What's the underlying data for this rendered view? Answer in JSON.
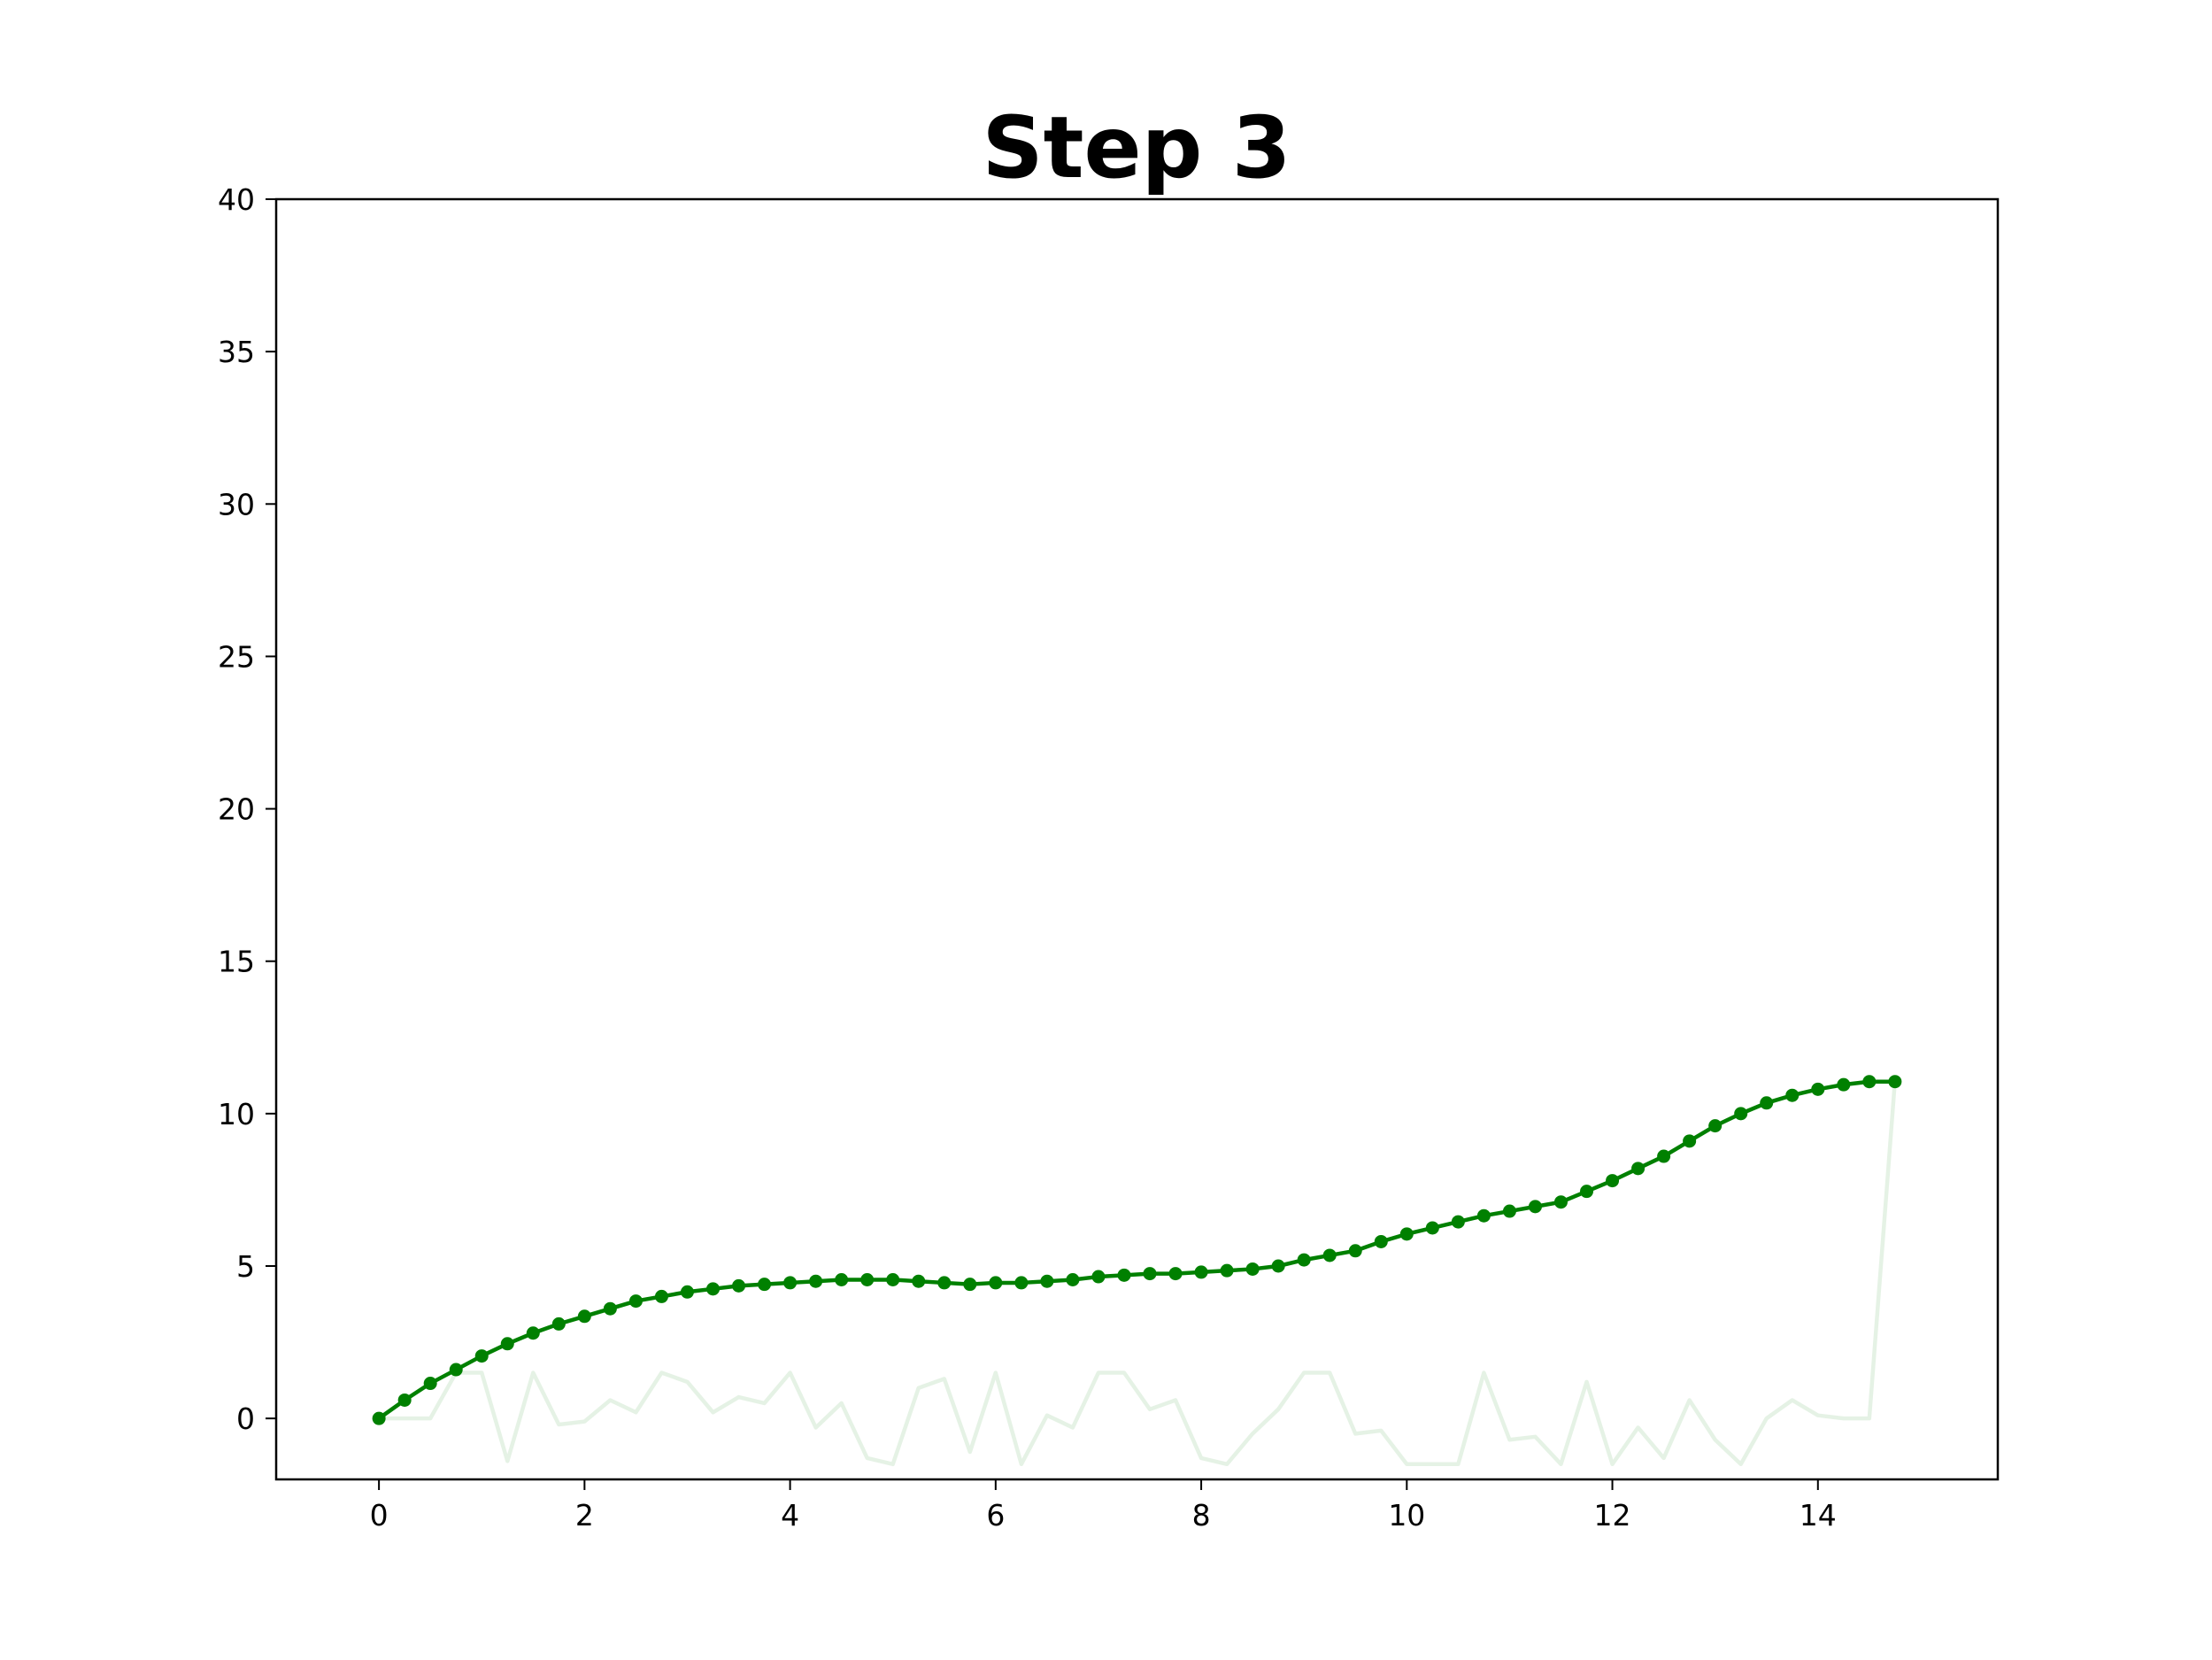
{
  "chart_data": {
    "type": "line",
    "title": "Step 3",
    "xlabel": "",
    "ylabel": "",
    "xlim": [
      -1,
      15.75
    ],
    "ylim": [
      -2,
      40
    ],
    "x_ticks": [
      0,
      2,
      4,
      6,
      8,
      10,
      12,
      14
    ],
    "y_ticks": [
      0,
      5,
      10,
      15,
      20,
      25,
      30,
      35,
      40
    ],
    "grid": false,
    "legend": "none",
    "series": [
      {
        "role": "raw",
        "color": "#008000",
        "opacity": 0.1,
        "marker": "none",
        "x": [
          0,
          0.25,
          0.5,
          0.75,
          1,
          1.25,
          1.5,
          1.75,
          2,
          2.25,
          2.5,
          2.75,
          3,
          3.25,
          3.5,
          3.75,
          4,
          4.25,
          4.5,
          4.75,
          5,
          5.25,
          5.5,
          5.75,
          6,
          6.25,
          6.5,
          6.75,
          7,
          7.25,
          7.5,
          7.75,
          8,
          8.25,
          8.5,
          8.75,
          9,
          9.25,
          9.5,
          9.75,
          10,
          10.25,
          10.5,
          10.75,
          11,
          11.25,
          11.5,
          11.75,
          12,
          12.25,
          12.5,
          12.75,
          13,
          13.25,
          13.5,
          13.75,
          14,
          14.25,
          14.5,
          14.75
        ],
        "y": [
          0,
          0,
          0,
          1.5,
          1.5,
          -1.4,
          1.5,
          -0.2,
          -0.1,
          0.6,
          0.2,
          1.5,
          1.2,
          0.2,
          0.7,
          0.5,
          1.5,
          -0.3,
          0.5,
          -1.3,
          -1.5,
          1.0,
          1.3,
          -1.1,
          1.5,
          -1.5,
          0.1,
          -0.3,
          1.5,
          1.5,
          0.3,
          0.6,
          -1.3,
          -1.5,
          -0.5,
          0.3,
          1.5,
          1.5,
          -0.5,
          -0.4,
          -1.5,
          -1.5,
          -1.5,
          1.5,
          -0.7,
          -0.6,
          -1.5,
          1.2,
          -1.5,
          -0.3,
          -1.3,
          0.6,
          -0.7,
          -1.5,
          0,
          0.6,
          0.1,
          0,
          0,
          11.1
        ]
      },
      {
        "role": "smoothed",
        "color": "#008000",
        "opacity": 1,
        "marker": "circle",
        "x": [
          0,
          0.25,
          0.5,
          0.75,
          1,
          1.25,
          1.5,
          1.75,
          2,
          2.25,
          2.5,
          2.75,
          3,
          3.25,
          3.5,
          3.75,
          4,
          4.25,
          4.5,
          4.75,
          5,
          5.25,
          5.5,
          5.75,
          6,
          6.25,
          6.5,
          6.75,
          7,
          7.25,
          7.5,
          7.75,
          8,
          8.25,
          8.5,
          8.75,
          9,
          9.25,
          9.5,
          9.75,
          10,
          10.25,
          10.5,
          10.75,
          11,
          11.25,
          11.5,
          11.75,
          12,
          12.25,
          12.5,
          12.75,
          13,
          13.25,
          13.5,
          13.75,
          14,
          14.25,
          14.5,
          14.75
        ],
        "y": [
          0,
          0.6,
          1.15,
          1.6,
          2.05,
          2.45,
          2.8,
          3.1,
          3.35,
          3.6,
          3.85,
          4.0,
          4.15,
          4.25,
          4.35,
          4.4,
          4.45,
          4.5,
          4.55,
          4.55,
          4.55,
          4.5,
          4.45,
          4.4,
          4.45,
          4.45,
          4.5,
          4.55,
          4.65,
          4.7,
          4.75,
          4.75,
          4.8,
          4.85,
          4.9,
          5.0,
          5.2,
          5.35,
          5.5,
          5.8,
          6.05,
          6.25,
          6.45,
          6.65,
          6.8,
          6.95,
          7.1,
          7.45,
          7.8,
          8.2,
          8.6,
          9.1,
          9.6,
          10.0,
          10.35,
          10.6,
          10.8,
          10.95,
          11.05,
          11.05
        ]
      }
    ]
  }
}
